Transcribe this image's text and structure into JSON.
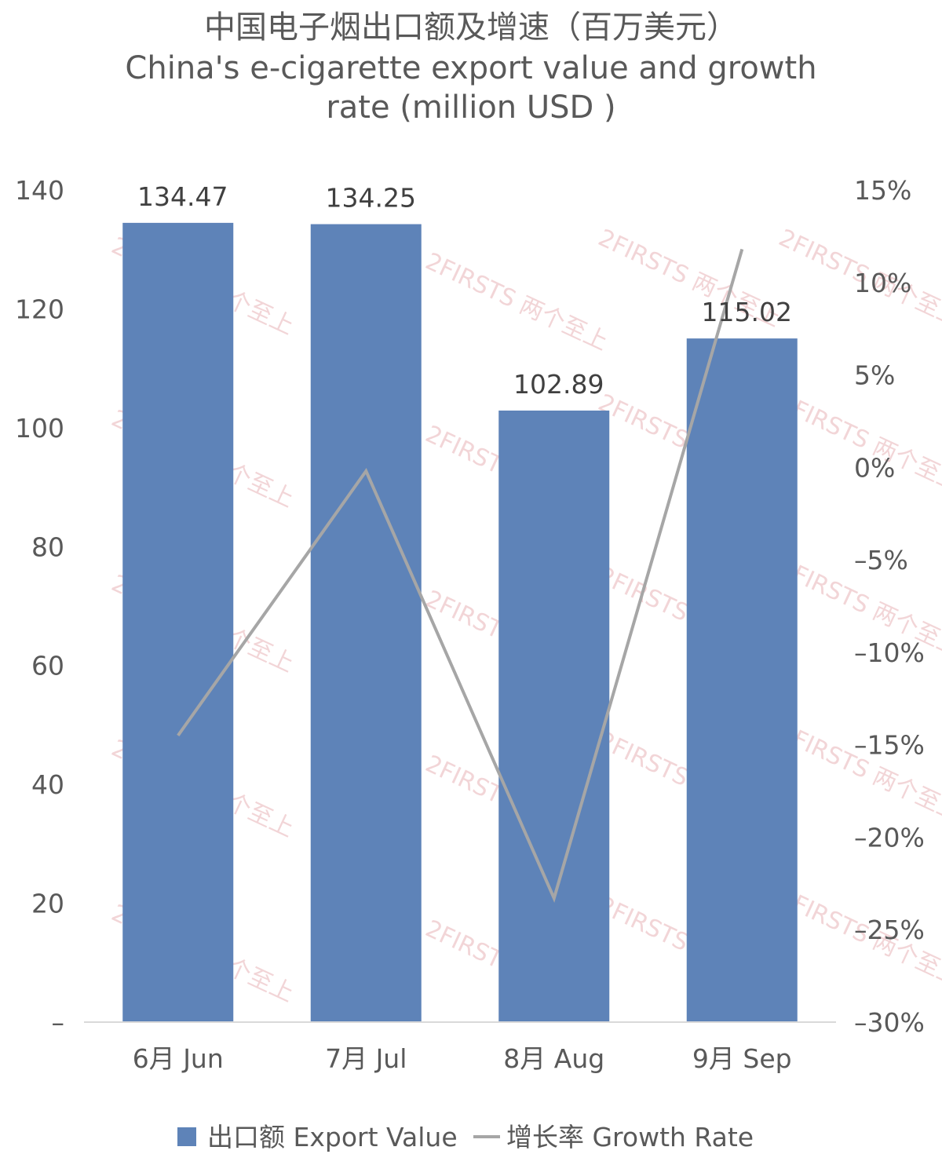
{
  "chart_data": {
    "type": "bar",
    "title_lines": [
      "中国电子烟出口额及增速（百万美元）",
      "China's e-cigarette export value and growth",
      "rate (million USD )"
    ],
    "categories": [
      "6月 Jun",
      "7月 Jul",
      "8月 Aug",
      "9月 Sep"
    ],
    "series": [
      {
        "name": "出口额 Export Value",
        "type": "bar",
        "axis": "left",
        "values": [
          134.47,
          134.25,
          102.89,
          115.02
        ],
        "labels": [
          "134.47",
          "134.25",
          "102.89",
          "115.02"
        ],
        "color": "#5e83b8"
      },
      {
        "name": "增长率 Growth Rate",
        "type": "line",
        "axis": "right",
        "values": [
          -14.5,
          -0.2,
          -23.3,
          11.8
        ],
        "color": "#a6a6a6"
      }
    ],
    "ylim_left": [
      0,
      140
    ],
    "left_ticks": [
      "–",
      "20",
      "40",
      "60",
      "80",
      "100",
      "120",
      "140"
    ],
    "ylim_right": [
      -30,
      15
    ],
    "right_ticks": [
      "–30%",
      "–25%",
      "–20%",
      "–15%",
      "–10%",
      "–5%",
      "0%",
      "5%",
      "10%",
      "15%"
    ],
    "legend_position": "bottom",
    "grid": false,
    "watermark": "2FIRSTS 两个至上"
  }
}
